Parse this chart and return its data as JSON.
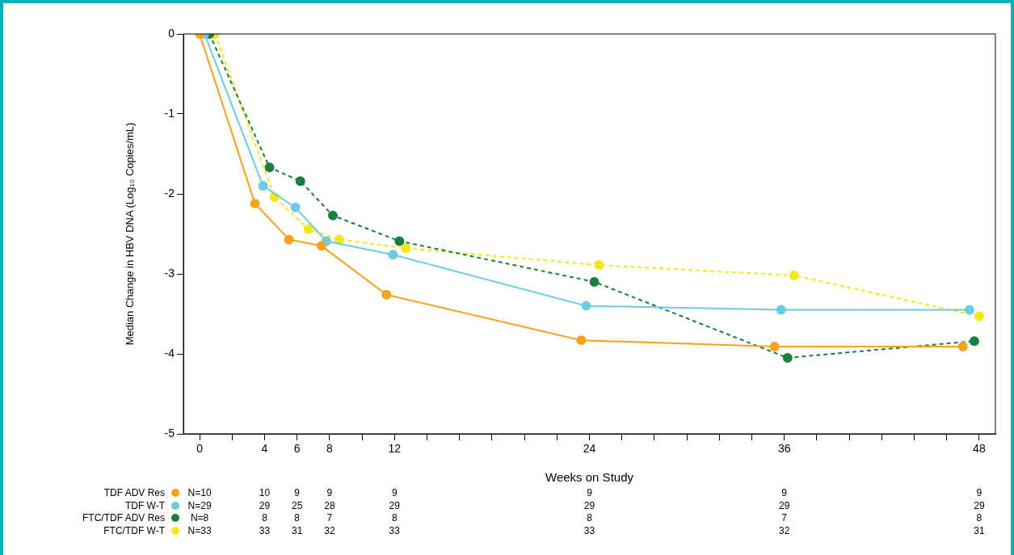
{
  "chart_data": {
    "type": "line",
    "xlabel": "Weeks on Study",
    "ylabel": "Median Change in HBV DNA (Log₁₀ Copies/mL)",
    "xlim": [
      -1,
      49
    ],
    "ylim": [
      -5,
      0
    ],
    "xticks": [
      0,
      {
        "value": 2,
        "label": null
      },
      4,
      6,
      8,
      {
        "value": 10,
        "label": null
      },
      12,
      {
        "value": 14,
        "label": null
      },
      {
        "value": 16,
        "label": null
      },
      {
        "value": 18,
        "label": null
      },
      {
        "value": 20,
        "label": null
      },
      {
        "value": 22,
        "label": null
      },
      24,
      {
        "value": 26,
        "label": null
      },
      {
        "value": 28,
        "label": null
      },
      {
        "value": 30,
        "label": null
      },
      {
        "value": 32,
        "label": null
      },
      {
        "value": 34,
        "label": null
      },
      36,
      {
        "value": 38,
        "label": null
      },
      {
        "value": 40,
        "label": null
      },
      {
        "value": 42,
        "label": null
      },
      {
        "value": 44,
        "label": null
      },
      {
        "value": 46,
        "label": null
      },
      48
    ],
    "yticks": [
      -5,
      -4,
      -3,
      -2,
      -1,
      0
    ],
    "grid": false,
    "legend": "bottom",
    "marker": "circle",
    "series": [
      {
        "name": "TDF ADV Res",
        "color": "#f7a21b",
        "line_style": "solid",
        "x": [
          0,
          3.4,
          5.5,
          7.5,
          11.5,
          23.5,
          35.4,
          47
        ],
        "values": [
          0,
          -2.12,
          -2.57,
          -2.65,
          -3.26,
          -3.83,
          -3.91,
          -3.91
        ]
      },
      {
        "name": "TDF W-T",
        "color": "#6ccbe0",
        "line_style": "solid",
        "x": [
          0.3,
          3.9,
          5.9,
          7.8,
          11.9,
          23.8,
          35.8,
          47.4
        ],
        "values": [
          0,
          -1.9,
          -2.17,
          -2.59,
          -2.76,
          -3.4,
          -3.45,
          -3.45
        ]
      },
      {
        "name": "FTC/TDF ADV Res",
        "color": "#1a7f3c",
        "line_style": "dashed",
        "x": [
          0.6,
          4.3,
          6.2,
          8.2,
          12.3,
          24.3,
          36.2,
          47.7
        ],
        "values": [
          0,
          -1.67,
          -1.84,
          -2.27,
          -2.59,
          -3.1,
          -4.05,
          -3.84
        ]
      },
      {
        "name": "FTC/TDF W-T",
        "color": "#f5e617",
        "line_style": "dashed",
        "x": [
          0.95,
          4.6,
          6.7,
          8.6,
          12.7,
          24.6,
          36.6,
          48
        ],
        "values": [
          0,
          -2.04,
          -2.44,
          -2.57,
          -2.68,
          -2.89,
          -3.02,
          -3.53
        ]
      }
    ],
    "annotations": [
      "N=10",
      "10",
      "9",
      "9",
      "9",
      "9",
      "9",
      "9",
      "N=29",
      "29",
      "25",
      "28",
      "29",
      "29",
      "29",
      "29",
      "N=8",
      "8",
      "8",
      "7",
      "8",
      "8",
      "7",
      "8",
      "N=33",
      "33",
      "31",
      "32",
      "33",
      "33",
      "32",
      "31"
    ]
  }
}
